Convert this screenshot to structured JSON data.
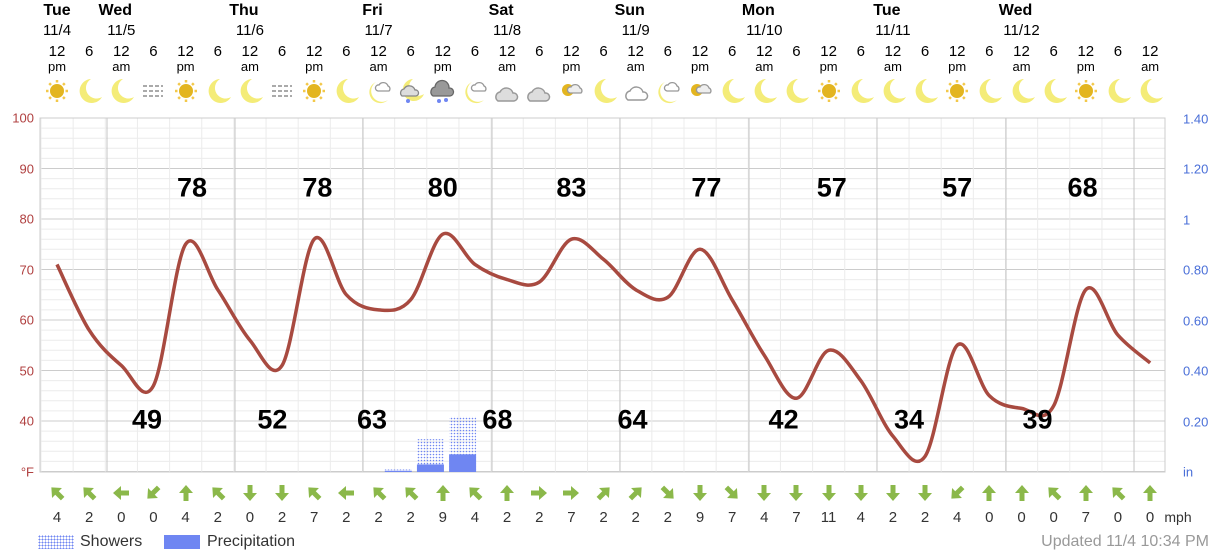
{
  "days": [
    {
      "name": "Tue",
      "date": "11/4",
      "col": 0
    },
    {
      "name": "Wed",
      "date": "11/5",
      "col": 2
    },
    {
      "name": "Thu",
      "date": "11/6",
      "col": 6
    },
    {
      "name": "Fri",
      "date": "11/7",
      "col": 10
    },
    {
      "name": "Sat",
      "date": "11/8",
      "col": 14
    },
    {
      "name": "Sun",
      "date": "11/9",
      "col": 18
    },
    {
      "name": "Mon",
      "date": "11/10",
      "col": 22
    },
    {
      "name": "Tue",
      "date": "11/11",
      "col": 26
    },
    {
      "name": "Wed",
      "date": "11/12",
      "col": 30
    }
  ],
  "hours": [
    "12|pm",
    "6",
    "12|am",
    "6",
    "12|pm",
    "6",
    "12|am",
    "6",
    "12|pm",
    "6",
    "12|am",
    "6",
    "12|pm",
    "6",
    "12|am",
    "6",
    "12|pm",
    "6",
    "12|am",
    "6",
    "12|pm",
    "6",
    "12|am",
    "6",
    "12|pm",
    "6",
    "12|am",
    "6",
    "12|pm",
    "6",
    "12|am",
    "6",
    "12|pm",
    "6",
    "12|am"
  ],
  "icons": [
    "sun",
    "moon",
    "moon",
    "fog",
    "sun",
    "moon",
    "moon",
    "fog",
    "sun",
    "moon",
    "moon-cloud",
    "rain",
    "heavy-rain",
    "moon-cloud",
    "cloudy",
    "cloudy",
    "sun-cloud",
    "moon",
    "cloud",
    "moon-cloud",
    "sun-cloud",
    "moon",
    "moon",
    "moon",
    "sun",
    "moon",
    "moon",
    "moon",
    "sun",
    "moon",
    "moon",
    "moon",
    "sun",
    "moon",
    "moon"
  ],
  "y_left": {
    "labels": [
      "100",
      "90",
      "80",
      "70",
      "60",
      "50",
      "40"
    ],
    "unit": "°F",
    "range": [
      30,
      100
    ]
  },
  "y_right": {
    "labels": [
      "1.40",
      "1.20",
      "1",
      "0.80",
      "0.60",
      "0.40",
      "0.20"
    ],
    "unit": "in",
    "range": [
      0,
      1.4
    ]
  },
  "chart_data": {
    "type": "line",
    "x_unit": "3-hour steps",
    "temperature": [
      71,
      58,
      51,
      47,
      75,
      66,
      56,
      51,
      76,
      65,
      62,
      64,
      77,
      71,
      68,
      67.5,
      76,
      72,
      66,
      64.5,
      74,
      64,
      53,
      44.5,
      54,
      48,
      37,
      33,
      55,
      45,
      42.5,
      43,
      66,
      57,
      51.5
    ],
    "highs": [
      {
        "value": "78",
        "col": 4.2
      },
      {
        "value": "78",
        "col": 8.1
      },
      {
        "value": "80",
        "col": 12
      },
      {
        "value": "83",
        "col": 16
      },
      {
        "value": "77",
        "col": 20.2
      },
      {
        "value": "57",
        "col": 24.1
      },
      {
        "value": "57",
        "col": 28
      },
      {
        "value": "68",
        "col": 31.9
      }
    ],
    "lows": [
      {
        "value": "49",
        "col": 2.8
      },
      {
        "value": "52",
        "col": 6.7
      },
      {
        "value": "63",
        "col": 9.8
      },
      {
        "value": "68",
        "col": 13.7
      },
      {
        "value": "64",
        "col": 17.9
      },
      {
        "value": "42",
        "col": 22.6
      },
      {
        "value": "34",
        "col": 26.5
      },
      {
        "value": "39",
        "col": 30.5
      }
    ],
    "precip": [
      {
        "col": 10.6,
        "showers": 0.01,
        "precipitation": 0.005
      },
      {
        "col": 11.6,
        "showers": 0.13,
        "precipitation": 0.03
      },
      {
        "col": 12.6,
        "showers": 0.22,
        "precipitation": 0.07
      }
    ]
  },
  "wind": {
    "unit": "mph",
    "speeds": [
      "4",
      "2",
      "0",
      "0",
      "4",
      "2",
      "0",
      "2",
      "7",
      "2",
      "2",
      "2",
      "9",
      "4",
      "2",
      "2",
      "7",
      "2",
      "2",
      "2",
      "9",
      "7",
      "4",
      "7",
      "11",
      "4",
      "2",
      "2",
      "4",
      "0",
      "0",
      "0",
      "7",
      "0",
      "0"
    ],
    "dirs": [
      315,
      315,
      270,
      225,
      0,
      315,
      180,
      180,
      315,
      270,
      315,
      315,
      0,
      315,
      0,
      90,
      90,
      45,
      45,
      135,
      180,
      135,
      180,
      180,
      180,
      180,
      180,
      180,
      225,
      0,
      0,
      315,
      0,
      315,
      0
    ]
  },
  "legend": {
    "showers": "Showers",
    "precipitation": "Precipitation"
  },
  "updated": "Updated 11/4 10:34 PM",
  "colors": {
    "line": "#a84a40",
    "precip": "#6f86f2",
    "arrow": "#8bb84a"
  }
}
